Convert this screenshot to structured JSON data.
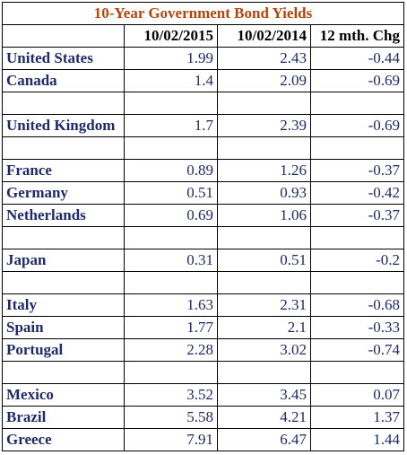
{
  "chart_data": {
    "type": "table",
    "title": "10-Year Government Bond Yields",
    "columns": [
      "",
      "10/02/2015",
      "10/02/2014",
      "12 mth. Chg"
    ],
    "rows": [
      {
        "country": "United States",
        "v2015": "1.99",
        "v2014": "2.43",
        "chg": "-0.44"
      },
      {
        "country": "Canada",
        "v2015": "1.4",
        "v2014": "2.09",
        "chg": "-0.69"
      },
      {
        "blank": true
      },
      {
        "country": "United Kingdom",
        "v2015": "1.7",
        "v2014": "2.39",
        "chg": "-0.69"
      },
      {
        "blank": true
      },
      {
        "country": "France",
        "v2015": "0.89",
        "v2014": "1.26",
        "chg": "-0.37"
      },
      {
        "country": "Germany",
        "v2015": "0.51",
        "v2014": "0.93",
        "chg": "-0.42"
      },
      {
        "country": "Netherlands",
        "v2015": "0.69",
        "v2014": "1.06",
        "chg": "-0.37"
      },
      {
        "blank": true
      },
      {
        "country": "Japan",
        "v2015": "0.31",
        "v2014": "0.51",
        "chg": "-0.2"
      },
      {
        "blank": true
      },
      {
        "country": "Italy",
        "v2015": "1.63",
        "v2014": "2.31",
        "chg": "-0.68"
      },
      {
        "country": "Spain",
        "v2015": "1.77",
        "v2014": "2.1",
        "chg": "-0.33"
      },
      {
        "country": "Portugal",
        "v2015": "2.28",
        "v2014": "3.02",
        "chg": "-0.74"
      },
      {
        "blank": true
      },
      {
        "country": "Mexico",
        "v2015": "3.52",
        "v2014": "3.45",
        "chg": "0.07"
      },
      {
        "country": "Brazil",
        "v2015": "5.58",
        "v2014": "4.21",
        "chg": "1.37"
      },
      {
        "country": "Greece",
        "v2015": "7.91",
        "v2014": "6.47",
        "chg": "1.44"
      }
    ]
  },
  "colors": {
    "title": "#b4450f",
    "text": "#1f2a6b",
    "border": "#000000"
  }
}
